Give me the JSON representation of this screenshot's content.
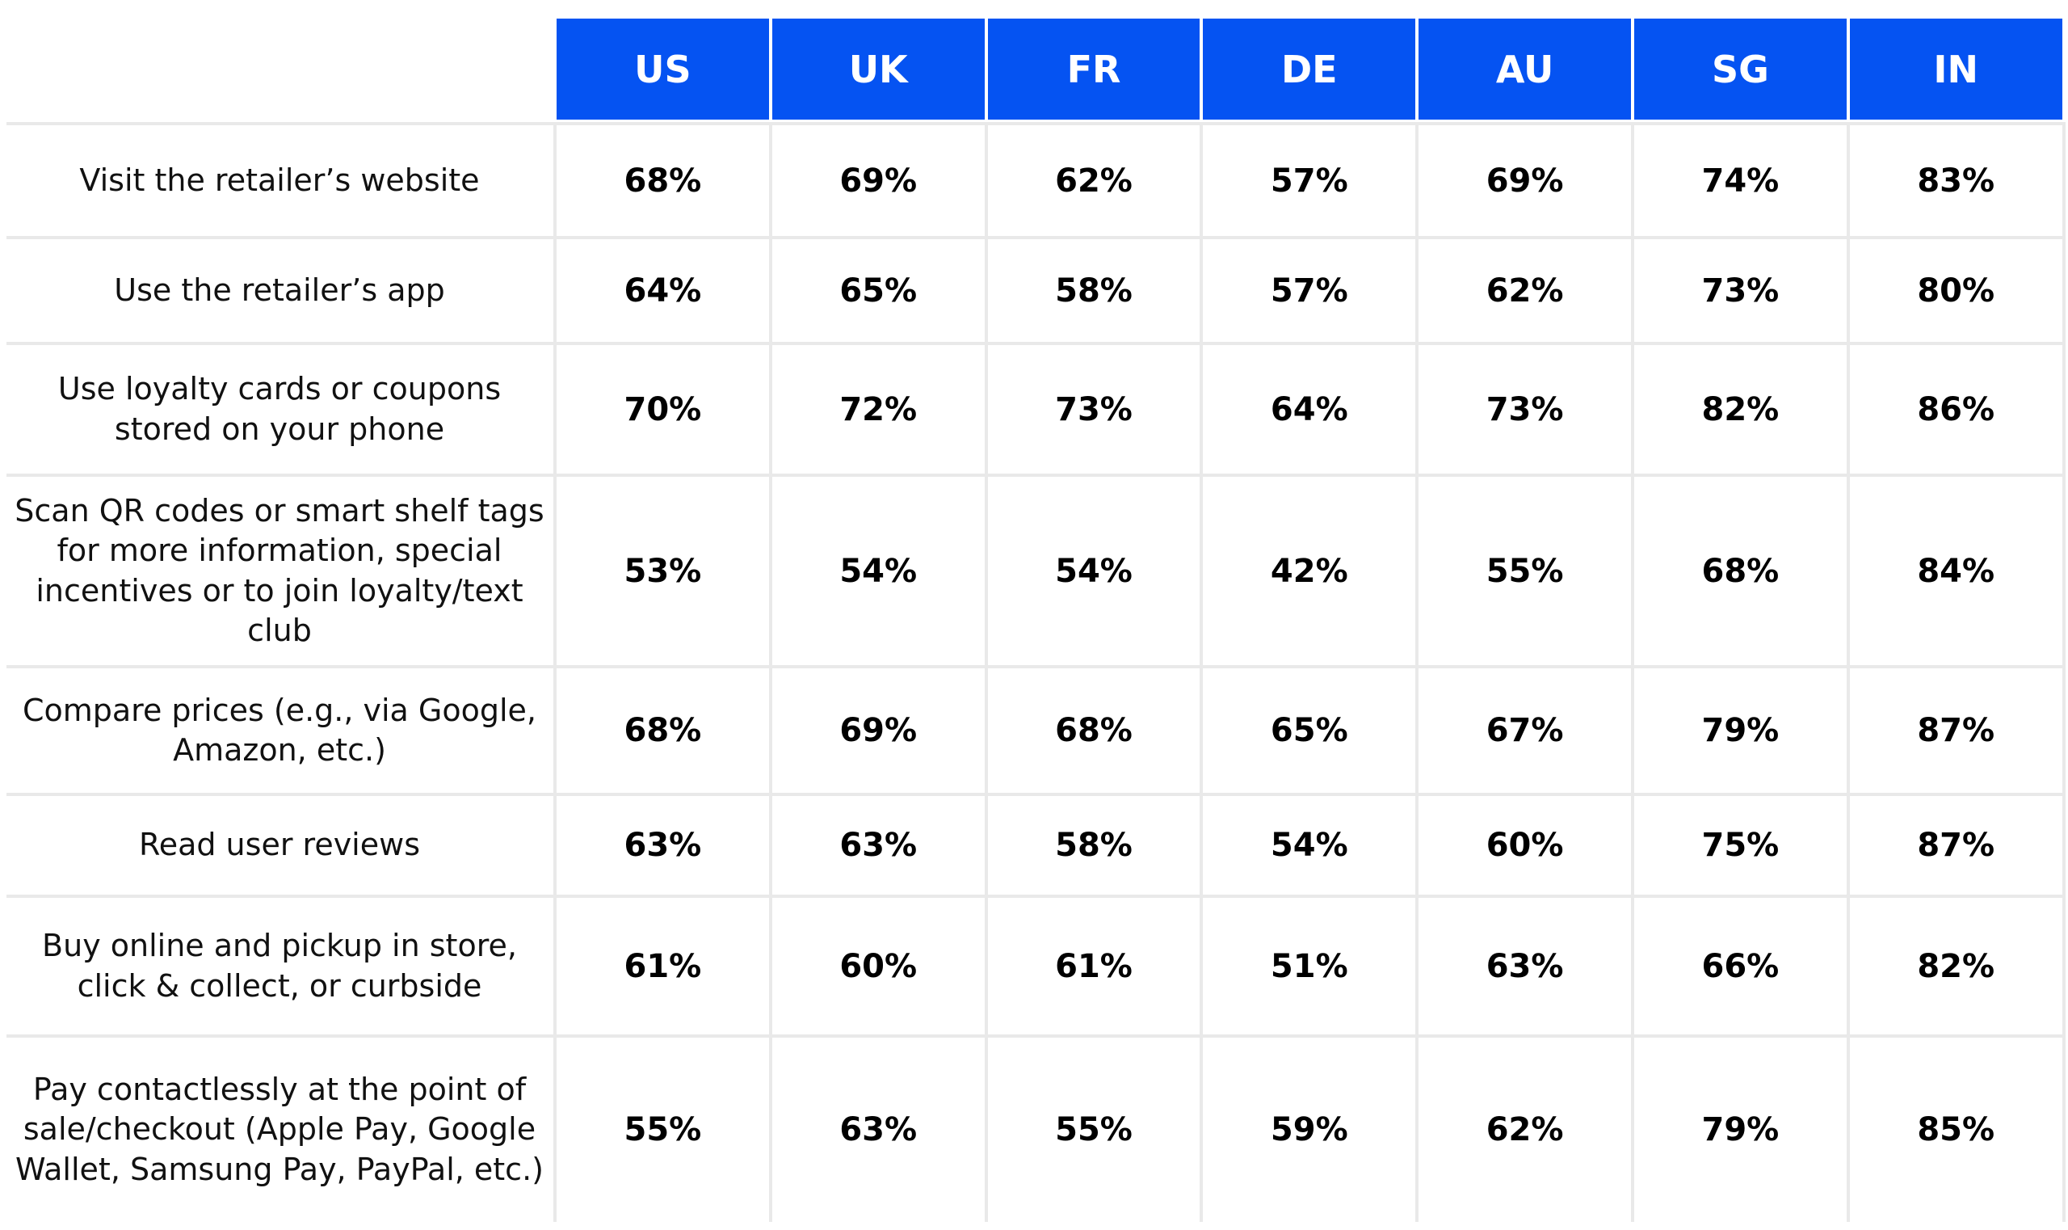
{
  "table": {
    "columns": [
      "US",
      "UK",
      "FR",
      "DE",
      "AU",
      "SG",
      "IN"
    ],
    "rows": [
      {
        "label": "Visit the retailer’s website",
        "values": [
          "68%",
          "69%",
          "62%",
          "57%",
          "69%",
          "74%",
          "83%"
        ]
      },
      {
        "label": "Use the retailer’s app",
        "values": [
          "64%",
          "65%",
          "58%",
          "57%",
          "62%",
          "73%",
          "80%"
        ]
      },
      {
        "label": "Use loyalty cards or coupons stored on your phone",
        "values": [
          "70%",
          "72%",
          "73%",
          "64%",
          "73%",
          "82%",
          "86%"
        ]
      },
      {
        "label": "Scan QR codes or smart shelf tags for more information, special incentives or to join loyalty/text club",
        "values": [
          "53%",
          "54%",
          "54%",
          "42%",
          "55%",
          "68%",
          "84%"
        ]
      },
      {
        "label": "Compare prices (e.g., via Google, Amazon, etc.)",
        "values": [
          "68%",
          "69%",
          "68%",
          "65%",
          "67%",
          "79%",
          "87%"
        ]
      },
      {
        "label": "Read user reviews",
        "values": [
          "63%",
          "63%",
          "58%",
          "54%",
          "60%",
          "75%",
          "87%"
        ]
      },
      {
        "label": "Buy online and pickup in store, click & collect, or curbside",
        "values": [
          "61%",
          "60%",
          "61%",
          "51%",
          "63%",
          "66%",
          "82%"
        ]
      },
      {
        "label": "Pay contactlessly at the point of sale/checkout (Apple Pay, Google Wallet, Samsung Pay, PayPal, etc.)",
        "values": [
          "55%",
          "63%",
          "55%",
          "59%",
          "62%",
          "79%",
          "85%"
        ]
      }
    ]
  }
}
